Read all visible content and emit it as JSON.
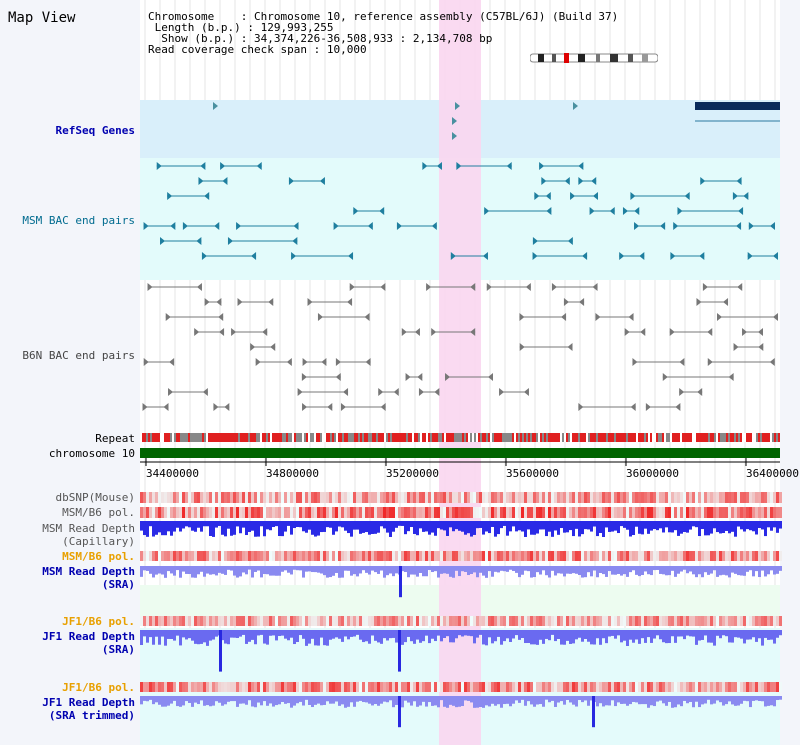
{
  "page": {
    "title": "Map View",
    "info": {
      "chromosome_label": "Chromosome",
      "chromosome_value": "Chromosome 10, reference assembly (C57BL/6J) (Build 37)",
      "length_label": "Length (b.p.)",
      "length_value": "129,993,255",
      "show_label": "Show (b.p.)",
      "show_value": "34,374,226-36,508,933 : 2,134,708 bp",
      "coverage_label": "Read coverage check span",
      "coverage_value": "10,000"
    }
  },
  "tracks": {
    "refseq": "RefSeq Genes",
    "msm_bac": "MSM BAC end pairs",
    "b6n_bac": "B6N BAC end pairs",
    "repeat": "Repeat",
    "chromosome": "chromosome 10",
    "dbsnp": "dbSNP(Mouse)",
    "msm_b6_pol": "MSM/B6 pol.",
    "msm_depth_cap_1": "MSM Read Depth",
    "msm_depth_cap_2": "(Capillary)",
    "msm_b6_pol2": "MSM/B6 pol.",
    "msm_depth_sra_1": "MSM Read Depth",
    "msm_depth_sra_2": "(SRA)",
    "jf1_pol": "JF1/B6 pol.",
    "jf1_depth_1": "JF1 Read Depth",
    "jf1_depth_2": "(SRA)",
    "jf1_pol2": "JF1/B6 pol.",
    "jf1_trim_1": "JF1 Read Depth",
    "jf1_trim_2": "(SRA trimmed)"
  },
  "axis": {
    "ticks": [
      "34400000",
      "34800000",
      "35200000",
      "35600000",
      "36000000",
      "36400000"
    ]
  },
  "colors": {
    "highlight": "#f9d6f0",
    "refseq_bg": "#d9effa",
    "msm_bg": "#e3fbfb",
    "chromosome": "#006400",
    "repeat": "#e02020",
    "depth_blue": "#2828e0",
    "pol_red": "#f03030"
  }
}
